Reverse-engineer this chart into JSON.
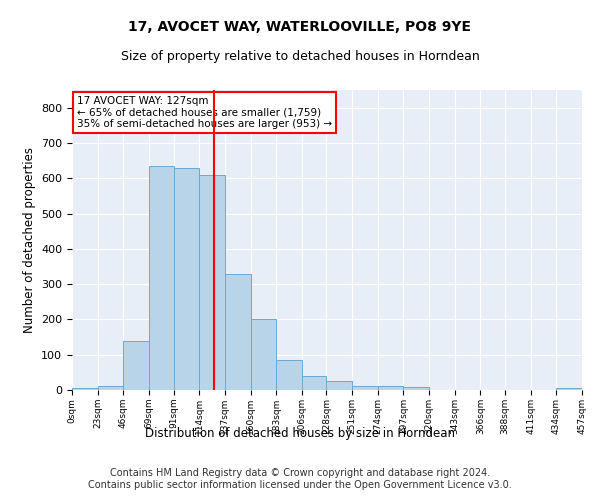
{
  "title": "17, AVOCET WAY, WATERLOOVILLE, PO8 9YE",
  "subtitle": "Size of property relative to detached houses in Horndean",
  "xlabel": "Distribution of detached houses by size in Horndean",
  "ylabel": "Number of detached properties",
  "bar_color": "#b8d4e8",
  "bar_edge_color": "#6aaad4",
  "background_color": "#e8eef8",
  "grid_color": "#ffffff",
  "ref_line_x": 127,
  "ref_line_color": "red",
  "annotation_text": "17 AVOCET WAY: 127sqm\n← 65% of detached houses are smaller (1,759)\n35% of semi-detached houses are larger (953) →",
  "annotation_box_color": "white",
  "annotation_box_edge": "red",
  "bin_edges": [
    0,
    23,
    46,
    69,
    91,
    114,
    137,
    160,
    183,
    206,
    228,
    251,
    274,
    297,
    320,
    343,
    366,
    388,
    411,
    434,
    457
  ],
  "tick_labels": [
    "0sqm",
    "23sqm",
    "46sqm",
    "69sqm",
    "91sqm",
    "114sqm",
    "137sqm",
    "160sqm",
    "183sqm",
    "206sqm",
    "228sqm",
    "251sqm",
    "274sqm",
    "297sqm",
    "320sqm",
    "343sqm",
    "366sqm",
    "388sqm",
    "411sqm",
    "434sqm",
    "457sqm"
  ],
  "bar_heights": [
    5,
    10,
    140,
    635,
    630,
    610,
    330,
    200,
    85,
    40,
    25,
    10,
    10,
    8,
    0,
    0,
    0,
    0,
    0,
    5
  ],
  "ylim": [
    0,
    850
  ],
  "yticks": [
    0,
    100,
    200,
    300,
    400,
    500,
    600,
    700,
    800
  ],
  "footer": "Contains HM Land Registry data © Crown copyright and database right 2024.\nContains public sector information licensed under the Open Government Licence v3.0.",
  "footer_fontsize": 7.0,
  "title_fontsize": 10,
  "subtitle_fontsize": 9
}
